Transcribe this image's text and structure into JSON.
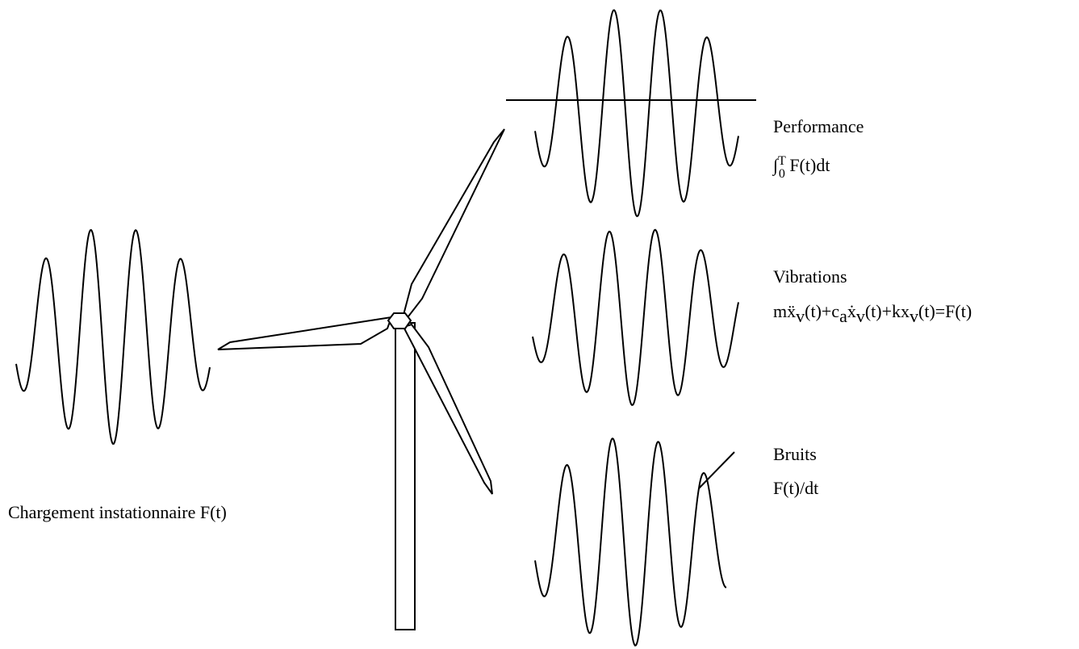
{
  "labels": {
    "input": "Chargement instationnaire F(t)",
    "performance": {
      "title": "Performance",
      "formula": [
        "∫",
        "T",
        "0",
        " F(t)dt"
      ]
    },
    "vibrations": {
      "title": "Vibrations",
      "formula": [
        "m",
        "ẍ",
        "v",
        "(t)+c",
        "a",
        "ẋ",
        "v",
        "(t)+kx",
        "v",
        "(t)=F(t)"
      ]
    },
    "noise": {
      "title": "Bruits",
      "formula": "F(t)/dt"
    }
  }
}
